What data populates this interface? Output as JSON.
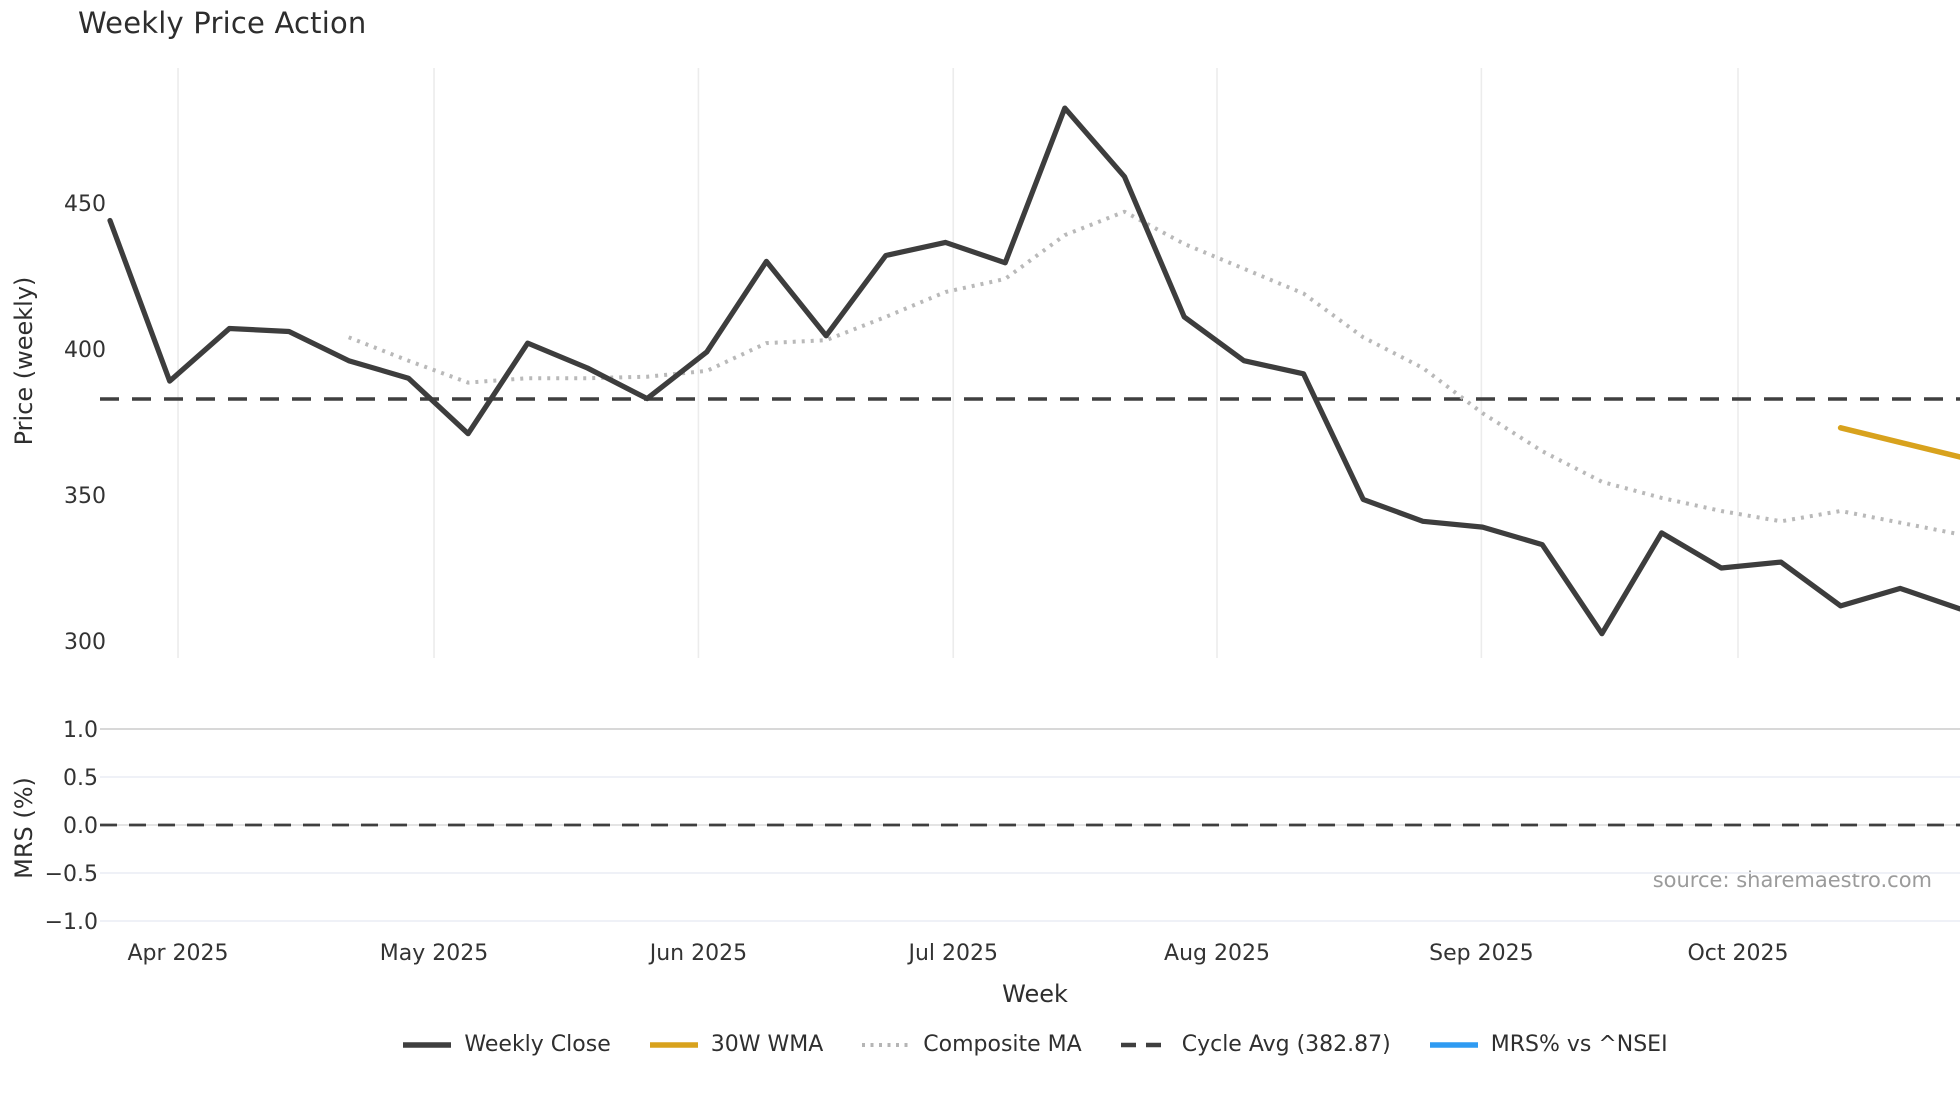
{
  "title": "Weekly Price Action",
  "xlabel": "Week",
  "source": "source: sharemaestro.com",
  "price_panel": {
    "ylabel": "Price (weekly)"
  },
  "mrs_panel": {
    "ylabel": "MRS (%)"
  },
  "legend": {
    "items": [
      {
        "label": "Weekly Close",
        "swatch": "dark-solid-line"
      },
      {
        "label": "30W WMA",
        "swatch": "gold-solid-line"
      },
      {
        "label": "Composite MA",
        "swatch": "gray-dotted-line"
      },
      {
        "label": "Cycle Avg (382.87)",
        "swatch": "dark-dashed-line"
      },
      {
        "label": "MRS% vs ^NSEI",
        "swatch": "blue-solid-line"
      }
    ]
  },
  "colors": {
    "weekly_close": "#3d3d3d",
    "wma_30w": "#d8a21d",
    "composite_ma": "#b9b9b9",
    "cycle_avg": "#3f3f3f",
    "mrs_line": "#2f9bf2",
    "month_gridline": "#ececec",
    "tick_text": "#333333",
    "source_text": "#9b9b9b"
  },
  "chart_data": [
    {
      "panel": "price",
      "type": "line",
      "title": "Weekly Price Action",
      "ylabel": "Price (weekly)",
      "yticks": [
        450,
        400,
        350,
        300
      ],
      "ylim": [
        294,
        497
      ],
      "x_unit": "week_index",
      "x_ticks": [
        {
          "label": "Apr 2025",
          "week": 1.14
        },
        {
          "label": "May 2025",
          "week": 5.43
        },
        {
          "label": "Jun 2025",
          "week": 9.86
        },
        {
          "label": "Jul 2025",
          "week": 14.13
        },
        {
          "label": "Aug 2025",
          "week": 18.55
        },
        {
          "label": "Sep 2025",
          "week": 22.98
        },
        {
          "label": "Oct 2025",
          "week": 27.28
        }
      ],
      "series": [
        {
          "name": "Weekly Close",
          "style": "solid",
          "color": "#3d3d3d",
          "start_week": 0,
          "values": [
            444,
            389,
            407,
            406,
            396,
            390,
            371,
            402,
            393.5,
            383,
            399,
            430,
            404.5,
            432,
            436.5,
            429.5,
            482.5,
            459,
            411,
            396,
            391.5,
            348.5,
            341,
            339,
            333,
            302.5,
            337,
            325,
            327,
            312,
            318,
            311
          ]
        },
        {
          "name": "30W WMA",
          "style": "solid",
          "color": "#d8a21d",
          "start_week": 29,
          "values": [
            373,
            368,
            363
          ]
        },
        {
          "name": "Composite MA",
          "style": "dotted",
          "color": "#b9b9b9",
          "start_week": 4,
          "values": [
            404,
            396,
            388.5,
            390,
            390,
            390.5,
            392.5,
            402,
            403,
            411,
            419.5,
            424,
            439,
            447,
            436,
            427.5,
            419,
            404,
            393.5,
            378,
            365,
            354.5,
            349,
            344.5,
            341,
            344.5,
            340.5,
            336.5
          ]
        },
        {
          "name": "Cycle Avg (382.87)",
          "style": "dashed",
          "color": "#3f3f3f",
          "constant_value": 382.87
        }
      ],
      "legend_position": "bottom-center",
      "grid": "vertical-months-only"
    },
    {
      "panel": "mrs",
      "type": "line",
      "ylabel": "MRS (%)",
      "yticks": [
        "1.0",
        "0.5",
        "0.0",
        "−0.5",
        "−1.0"
      ],
      "ytick_values": [
        1.0,
        0.5,
        0.0,
        -0.5,
        -1.0
      ],
      "ylim": [
        -1.2,
        1.2
      ],
      "xlabel": "Week",
      "series": [
        {
          "name": "MRS% vs ^NSEI",
          "style": "solid",
          "color": "#2f9bf2",
          "values": []
        },
        {
          "name": "zero-reference",
          "style": "dashed",
          "color": "#3f3f3f",
          "constant_value": 0.0
        }
      ],
      "grid": "horizontal-ticks"
    }
  ]
}
